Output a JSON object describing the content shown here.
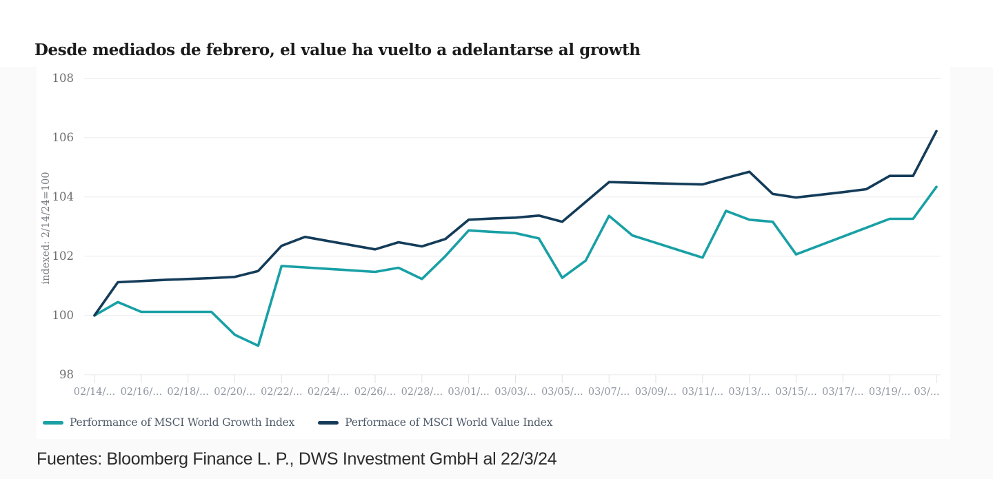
{
  "title": "Desde mediados de febrero, el value ha vuelto a adelantarse al growth",
  "source": "Fuentes: Bloomberg Finance L. P., DWS Investment GmbH al 22/3/24",
  "colors": {
    "growth_line": "#18a0a5",
    "value_line": "#143c59",
    "gridline": "#ececec",
    "tick_mark": "#e2e2e2",
    "page_background": "#fafafa",
    "card_background": "#ffffff"
  },
  "chart_data": {
    "type": "line",
    "title": "Desde mediados de febrero, el value ha vuelto a adelantarse al growth",
    "xlabel": "",
    "ylabel": "indexed: 2/14/24=100",
    "ylim": [
      98,
      108
    ],
    "yticks": [
      98,
      100,
      102,
      104,
      106,
      108
    ],
    "grid": "horizontal",
    "legend_position": "bottom",
    "x": [
      "02/14",
      "02/15",
      "02/16",
      "02/17",
      "02/18",
      "02/19",
      "02/20",
      "02/21",
      "02/22",
      "02/23",
      "02/24",
      "02/25",
      "02/26",
      "02/27",
      "02/28",
      "02/29",
      "03/01",
      "03/02",
      "03/03",
      "03/04",
      "03/05",
      "03/06",
      "03/07",
      "03/08",
      "03/09",
      "03/10",
      "03/11",
      "03/12",
      "03/13",
      "03/14",
      "03/15",
      "03/16",
      "03/17",
      "03/18",
      "03/19",
      "03/20",
      "03/21"
    ],
    "x_tick_labels": [
      "02/14/...",
      "02/16/...",
      "02/18/...",
      "02/20/...",
      "02/22/...",
      "02/24/...",
      "02/26/...",
      "02/28/...",
      "03/01/...",
      "03/03/...",
      "03/05/...",
      "03/07/...",
      "03/09/...",
      "03/11/...",
      "03/13/...",
      "03/15/...",
      "03/17/...",
      "03/19/...",
      "03/..."
    ],
    "series": [
      {
        "name": "Performance of MSCI World Growth Index",
        "color": "#18a0a5",
        "values": [
          100.0,
          100.45,
          100.12,
          100.12,
          100.12,
          100.12,
          99.35,
          98.98,
          101.67,
          101.62,
          101.57,
          101.52,
          101.47,
          101.61,
          101.23,
          102.0,
          102.87,
          102.82,
          102.78,
          102.6,
          101.27,
          101.85,
          103.36,
          102.7,
          102.45,
          102.2,
          101.95,
          103.53,
          103.23,
          103.16,
          102.06,
          102.36,
          102.66,
          102.96,
          103.26,
          103.26,
          104.34
        ]
      },
      {
        "name": "Performace of MSCI World Value Index",
        "color": "#143c59",
        "values": [
          100.0,
          101.12,
          101.16,
          101.2,
          101.23,
          101.26,
          101.3,
          101.5,
          102.35,
          102.65,
          102.51,
          102.37,
          102.23,
          102.47,
          102.33,
          102.58,
          103.23,
          103.27,
          103.3,
          103.37,
          103.16,
          103.83,
          104.5,
          104.48,
          104.46,
          104.44,
          104.42,
          104.64,
          104.85,
          104.1,
          103.98,
          104.07,
          104.16,
          104.26,
          104.71,
          104.71,
          106.22
        ]
      }
    ]
  }
}
